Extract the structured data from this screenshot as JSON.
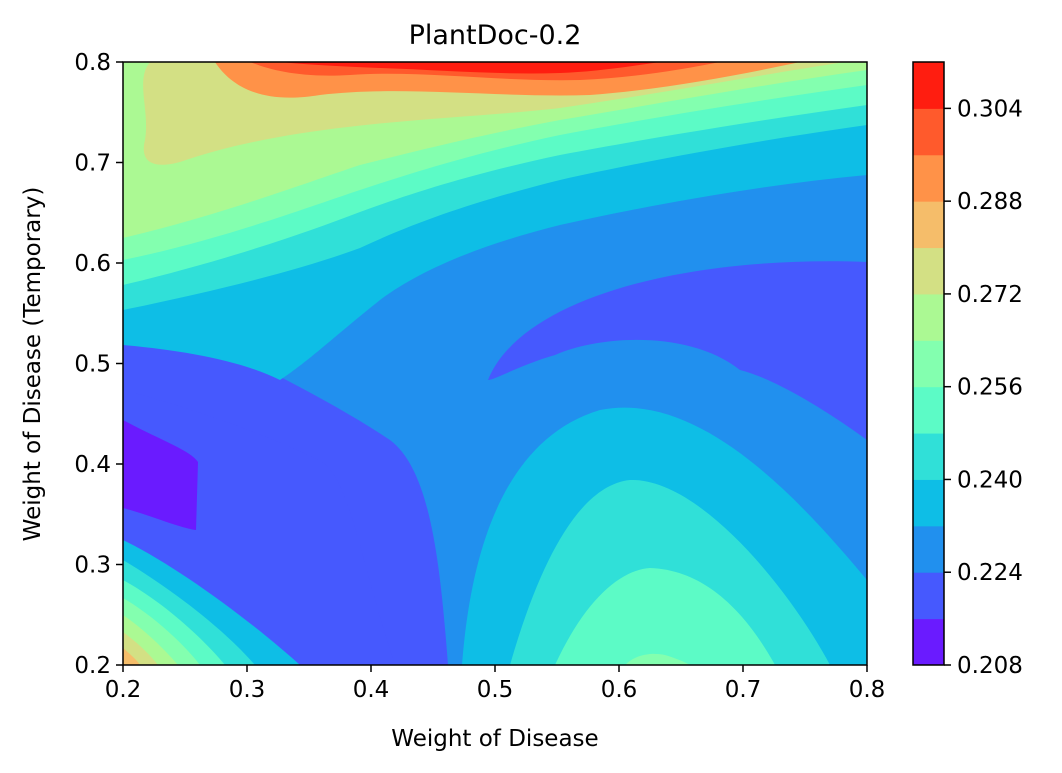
{
  "chart_data": {
    "type": "contour",
    "title": "PlantDoc-0.2",
    "xlabel": "Weight of Disease",
    "ylabel": "Weight of Disease (Temporary)",
    "xlim": [
      0.2,
      0.8
    ],
    "ylim": [
      0.2,
      0.8
    ],
    "x_ticks": [
      "0.2",
      "0.3",
      "0.4",
      "0.5",
      "0.6",
      "0.7",
      "0.8"
    ],
    "y_ticks": [
      "0.2",
      "0.3",
      "0.4",
      "0.5",
      "0.6",
      "0.7",
      "0.8"
    ],
    "colorbar": {
      "range": [
        0.208,
        0.312
      ],
      "tick_labels": [
        "0.208",
        "0.224",
        "0.240",
        "0.256",
        "0.272",
        "0.288",
        "0.304"
      ],
      "levels": [
        0.208,
        0.216,
        0.224,
        0.232,
        0.24,
        0.248,
        0.256,
        0.264,
        0.272,
        0.28,
        0.288,
        0.296,
        0.304,
        0.312
      ],
      "colors": [
        "#6a1bff",
        "#4659fe",
        "#2190ee",
        "#0ebee6",
        "#30e0d8",
        "#5cfbc6",
        "#83ffaf",
        "#abf993",
        "#d3e084",
        "#f5bd6a",
        "#ff9248",
        "#ff5a2c",
        "#ff1d10"
      ]
    },
    "grid": false
  }
}
